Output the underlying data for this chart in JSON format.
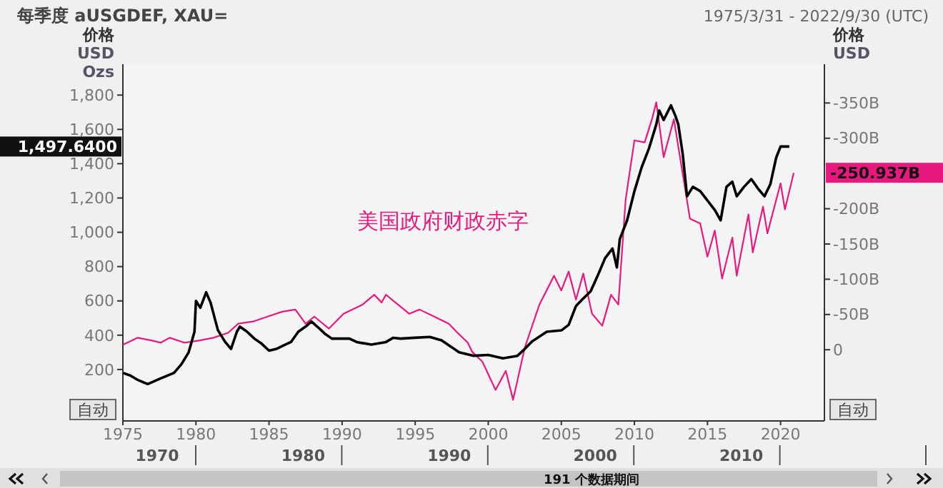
{
  "chart_data": {
    "type": "line",
    "title": "每季度 aUSGDEF, XAU=",
    "subtitle": "1975/3/31 - 2022/9/30 (UTC)",
    "ylabel": "价格\nUSD\nOzs",
    "y2label": "价格\nUSD",
    "xlim": [
      1975,
      2023
    ],
    "xticks": [
      1975,
      1980,
      1985,
      1990,
      1995,
      2000,
      2005,
      2010,
      2015,
      2020
    ],
    "ylim": [
      -100,
      1980
    ],
    "yticks": [
      200,
      400,
      600,
      800,
      {
        "value": 1000,
        "label": "1,000"
      },
      {
        "value": 1200,
        "label": "1,200"
      },
      {
        "value": 1400,
        "label": "1,400"
      },
      {
        "value": 1600,
        "label": "1,600"
      },
      {
        "value": 1800,
        "label": "1,800"
      }
    ],
    "y2lim": [
      101,
      -405
    ],
    "y2ticks": [
      0,
      {
        "value": -50,
        "label": "-50B"
      },
      {
        "value": -100,
        "label": "-100B"
      },
      {
        "value": -150,
        "label": "-150B"
      },
      {
        "value": -200,
        "label": "-200B"
      },
      {
        "value": -300,
        "label": "-300B"
      },
      {
        "value": -350,
        "label": "-350B"
      }
    ],
    "grid": false,
    "line_style": "solid",
    "marker": "none",
    "series": [
      {
        "color": "#000000",
        "x": [
          1975,
          1975.5,
          1976,
          1976.7,
          1977.5,
          1978.5,
          1979,
          1979.5,
          1979.9,
          1980,
          1980.3,
          1980.7,
          1981,
          1981.5,
          1982,
          1982.4,
          1982.8,
          1983,
          1983.5,
          1984,
          1984.5,
          1985,
          1985.5,
          1986,
          1986.5,
          1987,
          1987.5,
          1987.9,
          1988.3,
          1988.8,
          1989.3,
          1990,
          1990.5,
          1991,
          1992,
          1993,
          1993.5,
          1994,
          1995,
          1996,
          1996.8,
          1997.5,
          1998,
          1999,
          2000,
          2001,
          2002,
          2002.5,
          2003,
          2004,
          2005,
          2005.5,
          2006,
          2006.5,
          2007,
          2007.5,
          2008,
          2008.5,
          2008.8,
          2009,
          2009.5,
          2010,
          2010.5,
          2011,
          2011.5,
          2011.7,
          2012,
          2012.5,
          2012.8,
          2013,
          2013.3,
          2013.6,
          2014,
          2014.5,
          2015,
          2015.5,
          2015.9,
          2016.3,
          2016.7,
          2017,
          2017.5,
          2018,
          2018.5,
          2018.9,
          2019.3,
          2019.7,
          2020,
          2020.3,
          2020.6
        ],
        "values": [
          180,
          165,
          140,
          115,
          145,
          180,
          230,
          300,
          420,
          600,
          560,
          650,
          590,
          430,
          360,
          320,
          420,
          450,
          420,
          380,
          350,
          310,
          320,
          340,
          360,
          420,
          450,
          480,
          450,
          410,
          380,
          380,
          380,
          360,
          345,
          360,
          385,
          380,
          385,
          390,
          370,
          330,
          300,
          280,
          285,
          265,
          280,
          320,
          364,
          420,
          428,
          460,
          570,
          614,
          655,
          750,
          850,
          905,
          795,
          960,
          1070,
          1240,
          1380,
          1490,
          1630,
          1710,
          1655,
          1740,
          1680,
          1630,
          1460,
          1210,
          1265,
          1240,
          1185,
          1130,
          1070,
          1265,
          1295,
          1210,
          1265,
          1310,
          1250,
          1210,
          1280,
          1435,
          1500,
          1500,
          1500
        ]
      },
      {
        "color": "#e8197e",
        "axis": "y2",
        "x": [
          1975,
          1976,
          1977,
          1977.6,
          1978.2,
          1979.2,
          1980.2,
          1981.2,
          1982.2,
          1982.9,
          1983.9,
          1984.9,
          1985.9,
          1986.8,
          1987.5,
          1988.1,
          1989.1,
          1990.1,
          1991.4,
          1992.2,
          1992.7,
          1993,
          1994,
          1994.6,
          1995.3,
          1996.3,
          1997.3,
          1997.9,
          1998.6,
          1998.9,
          1999.6,
          2000.5,
          2001.2,
          2001.7,
          2002.5,
          2003.5,
          2004.5,
          2005,
          2005.5,
          2006,
          2006.5,
          2007.1,
          2007.8,
          2008.4,
          2008.9,
          2009.4,
          2010,
          2010.7,
          2011.2,
          2011.5,
          2012,
          2012.7,
          2013.2,
          2013.8,
          2014.5,
          2015,
          2015.5,
          2016,
          2016.7,
          2017,
          2017.8,
          2018.1,
          2018.8,
          2019.1,
          2020,
          2020.3,
          2020.9
        ],
        "values": [
          -7,
          -17,
          -13,
          -10,
          -17,
          -10,
          -13,
          -17,
          -24,
          -37,
          -40,
          -47,
          -54,
          -57,
          -37,
          -47,
          -30,
          -51,
          -64,
          -78,
          -67,
          -78,
          -61,
          -51,
          -57,
          -47,
          -37,
          -24,
          -10,
          3,
          17,
          57,
          30,
          71,
          -3,
          -64,
          -105,
          -84,
          -111,
          -71,
          -108,
          -51,
          -34,
          -78,
          -64,
          -213,
          -297,
          -294,
          -327,
          -351,
          -273,
          -327,
          -263,
          -186,
          -179,
          -132,
          -169,
          -101,
          -159,
          -105,
          -192,
          -138,
          -203,
          -165,
          -236,
          -199,
          -251
        ]
      }
    ],
    "annotations": [
      "美国政府财政赤字",
      "1,497.6400",
      "-250.937B",
      "自动",
      "自动",
      "1970",
      "1980",
      "1990",
      "2000",
      "2010",
      "191 个数据期间"
    ]
  }
}
